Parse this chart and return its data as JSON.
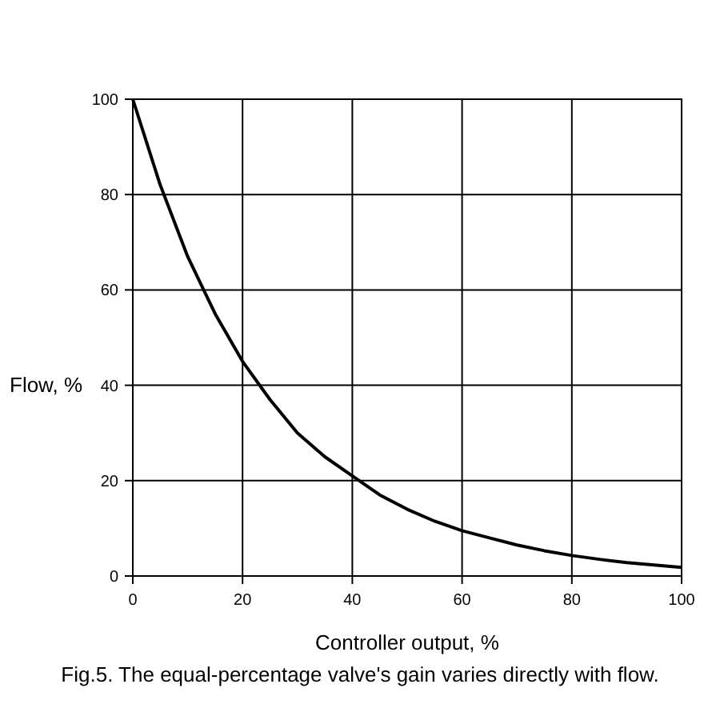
{
  "chart_data": {
    "type": "line",
    "xlabel": "Controller output, %",
    "ylabel": "Flow, %",
    "annotations": [
      "Fig.5. The equal-percentage valve's gain varies directly with flow."
    ],
    "x": [
      0,
      5,
      10,
      15,
      20,
      25,
      30,
      35,
      40,
      45,
      50,
      55,
      60,
      65,
      70,
      75,
      80,
      85,
      90,
      95,
      100
    ],
    "series": [
      {
        "color": "#000000",
        "values": [
          100,
          82,
          67,
          55,
          45,
          37,
          30,
          25,
          21,
          17,
          14,
          11.5,
          9.5,
          8,
          6.5,
          5.3,
          4.3,
          3.5,
          2.8,
          2.3,
          1.8
        ]
      }
    ],
    "xlim": [
      0,
      100
    ],
    "ylim": [
      0,
      100
    ],
    "xticks": [
      0,
      20,
      40,
      60,
      80,
      100
    ],
    "yticks": [
      0,
      20,
      40,
      60,
      80,
      100
    ],
    "grid": true,
    "marker": "none",
    "line_style": "solid"
  }
}
